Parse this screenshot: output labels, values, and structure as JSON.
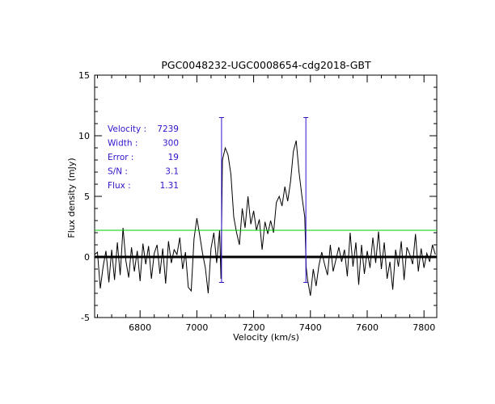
{
  "chart_data": {
    "type": "line",
    "title": "PGC0048232-UGC0008654-cdg2018-GBT",
    "xlabel": "Velocity (km/s)",
    "ylabel": "Flux density (mJy)",
    "xlim": [
      6640,
      7845
    ],
    "ylim": [
      -5,
      15
    ],
    "x_ticks": [
      6800,
      7000,
      7200,
      7400,
      7600,
      7800
    ],
    "y_ticks": [
      -5,
      0,
      5,
      10,
      15
    ],
    "grid": false,
    "colors": {
      "spectrum": "#000000",
      "zero_line": "#000000",
      "threshold_line": "#00cc00",
      "markers": "#3311cc",
      "annotation": "#3311cc"
    },
    "threshold_level": 2.2,
    "zero_level": 0,
    "markers": [
      {
        "x": 7087,
        "ymin": -2.1,
        "ymax": 11.5
      },
      {
        "x": 7384,
        "ymin": -2.1,
        "ymax": 11.5
      }
    ],
    "annotations": [
      {
        "label": "Velocity :",
        "value": "7239"
      },
      {
        "label": "Width :",
        "value": "300"
      },
      {
        "label": "Error :",
        "value": "19"
      },
      {
        "label": "S/N :",
        "value": "3.1"
      },
      {
        "label": "Flux :",
        "value": "1.31"
      }
    ],
    "series": [
      {
        "x": [
          6640,
          6650,
          6660,
          6670,
          6680,
          6690,
          6700,
          6710,
          6720,
          6730,
          6740,
          6750,
          6760,
          6770,
          6780,
          6790,
          6800,
          6810,
          6820,
          6830,
          6840,
          6850,
          6860,
          6870,
          6880,
          6890,
          6900,
          6910,
          6920,
          6930,
          6940,
          6950,
          6960,
          6970,
          6980,
          6990,
          7000,
          7010,
          7020,
          7030,
          7040,
          7050,
          7060,
          7070,
          7080,
          7085,
          7090,
          7100,
          7110,
          7120,
          7130,
          7140,
          7150,
          7160,
          7170,
          7180,
          7190,
          7200,
          7210,
          7220,
          7230,
          7240,
          7250,
          7260,
          7270,
          7280,
          7290,
          7300,
          7310,
          7320,
          7330,
          7340,
          7350,
          7360,
          7370,
          7380,
          7385,
          7390,
          7400,
          7410,
          7420,
          7430,
          7440,
          7450,
          7460,
          7470,
          7480,
          7490,
          7500,
          7510,
          7520,
          7530,
          7540,
          7550,
          7560,
          7570,
          7580,
          7590,
          7600,
          7610,
          7620,
          7630,
          7640,
          7650,
          7660,
          7670,
          7680,
          7690,
          7700,
          7710,
          7720,
          7730,
          7740,
          7750,
          7760,
          7770,
          7780,
          7790,
          7800,
          7810,
          7820,
          7830,
          7840
        ],
        "values": [
          0.2,
          0.4,
          -2.6,
          -0.8,
          0.5,
          -2.1,
          0.6,
          -1.9,
          1.2,
          -1.5,
          2.4,
          -0.3,
          -1.7,
          0.8,
          -1.2,
          0.5,
          -2.0,
          1.1,
          -0.6,
          0.9,
          -1.8,
          0.3,
          1.0,
          -1.4,
          0.7,
          -2.2,
          1.3,
          -0.5,
          0.6,
          0.2,
          1.6,
          -1.0,
          0.4,
          -2.5,
          -2.8,
          1.5,
          3.2,
          1.8,
          0.3,
          -0.9,
          -3.0,
          0.7,
          2.0,
          -0.5,
          2.2,
          -1.8,
          8.0,
          9.0,
          8.4,
          6.8,
          3.3,
          2.0,
          1.0,
          4.0,
          2.4,
          5.0,
          2.7,
          3.8,
          2.2,
          3.1,
          0.6,
          2.9,
          1.9,
          3.0,
          2.0,
          4.5,
          5.0,
          4.2,
          5.8,
          4.6,
          6.2,
          8.7,
          9.6,
          7.0,
          5.0,
          3.3,
          -0.8,
          -1.9,
          -3.2,
          -1.0,
          -2.4,
          -0.7,
          0.4,
          -0.6,
          -1.5,
          1.0,
          -1.2,
          -0.2,
          0.8,
          -0.4,
          0.6,
          -1.6,
          2.0,
          -0.8,
          1.2,
          -2.3,
          1.0,
          -1.4,
          0.5,
          -0.9,
          1.6,
          -0.5,
          2.1,
          -1.0,
          1.2,
          -1.8,
          -0.4,
          -2.7,
          0.6,
          -0.8,
          1.3,
          -1.9,
          0.8,
          0.2,
          -0.6,
          1.9,
          -1.2,
          0.7,
          -0.9,
          0.3,
          -0.4,
          1.0,
          0.2
        ]
      }
    ]
  }
}
